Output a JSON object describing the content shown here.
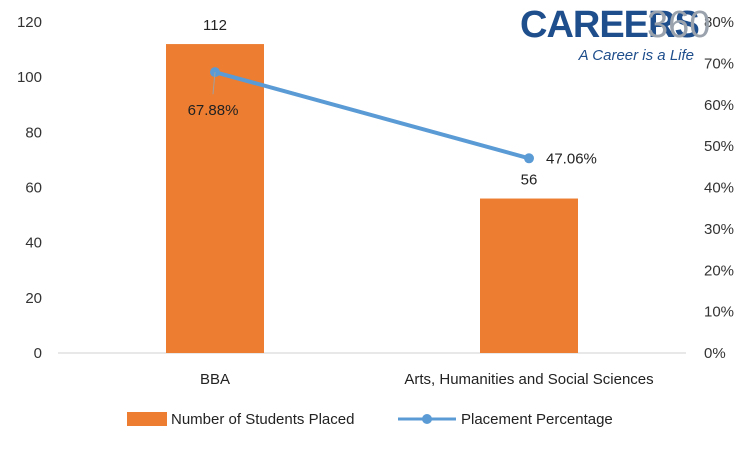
{
  "logo": {
    "brand": "CAREERS",
    "brand_num": "360",
    "tagline": "A Career is a Life"
  },
  "colors": {
    "bar": "#ed7d31",
    "line": "#5b9bd5",
    "axis": "#d0d0d0"
  },
  "chart_data": {
    "type": "bar",
    "categories": [
      "BBA",
      "Arts, Humanities and Social Sciences"
    ],
    "series": [
      {
        "name": "Number of Students Placed",
        "type": "bar",
        "axis": "left",
        "values": [
          112,
          56
        ],
        "labels": [
          "112",
          "56"
        ]
      },
      {
        "name": "Placement Percentage",
        "type": "line",
        "axis": "right",
        "values": [
          67.88,
          47.06
        ],
        "labels": [
          "67.88%",
          "47.06%"
        ]
      }
    ],
    "y_left": {
      "min": 0,
      "max": 120,
      "ticks": [
        "0",
        "20",
        "40",
        "60",
        "80",
        "100",
        "120"
      ]
    },
    "y_right": {
      "min": 0,
      "max": 80,
      "ticks": [
        "0%",
        "10%",
        "20%",
        "30%",
        "40%",
        "50%",
        "60%",
        "70%",
        "80%"
      ]
    },
    "grid": false,
    "legend_position": "bottom"
  }
}
